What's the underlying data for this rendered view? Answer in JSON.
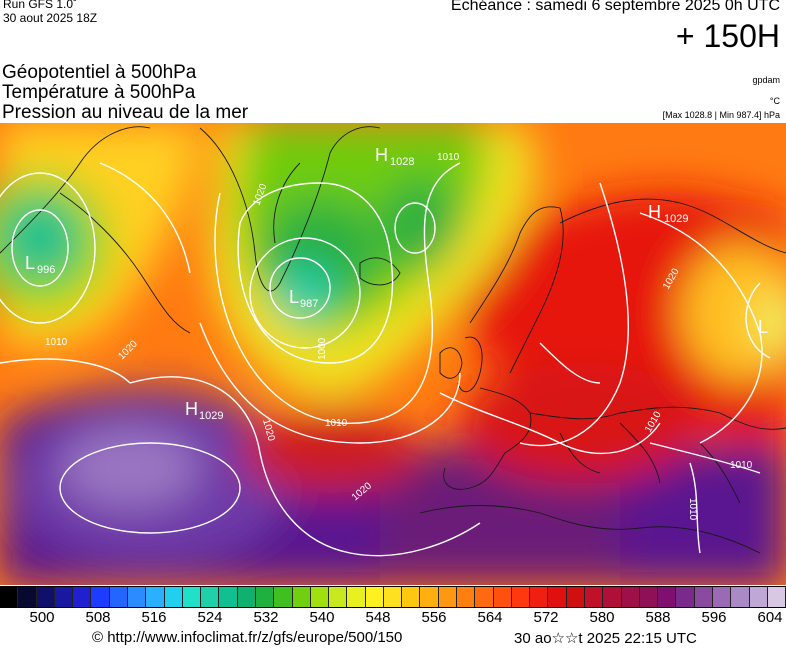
{
  "header": {
    "run_label": "Run GFS 1.0˚",
    "run_date": "30 aout 2025 18Z",
    "echeance": "Echéance : samedi 6 septembre 2025 0h UTC",
    "lead": "+ 150H"
  },
  "parameters": [
    "Géopotentiel à 500hPa",
    "Température à 500hPa",
    "Pression au niveau de la mer"
  ],
  "units": {
    "geopotential": "gpdam",
    "temperature": "°C",
    "pressure_range": "[Max 1028.8 | Min 987.4] hPa"
  },
  "pressure_centers": [
    {
      "type": "H",
      "value": "1028",
      "lon": -8,
      "lat": 72
    },
    {
      "type": "H",
      "value": "1029",
      "lon": 32,
      "lat": 66
    },
    {
      "type": "H",
      "value": "1029",
      "lon": -35,
      "lat": 45
    },
    {
      "type": "L",
      "value": "996",
      "lon": -62,
      "lat": 60
    },
    {
      "type": "L",
      "value": "987",
      "lon": -27,
      "lat": 61
    },
    {
      "type": "L",
      "value": "",
      "lon": 47,
      "lat": 62
    }
  ],
  "isobar_labels": [
    "1010",
    "1020",
    "1000",
    "1010",
    "1020",
    "1010",
    "1020",
    "1020",
    "1010",
    "1020",
    "1010",
    "1010"
  ],
  "colorbar": {
    "ticks": [
      "500",
      "508",
      "516",
      "524",
      "532",
      "540",
      "548",
      "556",
      "564",
      "572",
      "580",
      "588",
      "596",
      "604"
    ],
    "colors": [
      "#000000",
      "#080830",
      "#10106a",
      "#1818a0",
      "#2020d0",
      "#1e3cff",
      "#2266ff",
      "#2a8cff",
      "#2ab0ff",
      "#20d0ee",
      "#20e0c8",
      "#20d0a8",
      "#10c090",
      "#10b070",
      "#20b040",
      "#40c020",
      "#70d010",
      "#a0e010",
      "#c8e820",
      "#e8f020",
      "#fff020",
      "#ffe020",
      "#ffc810",
      "#ffb010",
      "#ff9810",
      "#ff8010",
      "#ff6a10",
      "#ff5010",
      "#ff3810",
      "#f02010",
      "#e01010",
      "#d01010",
      "#c0102a",
      "#b01038",
      "#a01048",
      "#901058",
      "#801070",
      "#7a2a8a",
      "#8a4aa0",
      "#9a6ab4",
      "#aa8ac6",
      "#c0a8d6",
      "#d8c8e4"
    ]
  },
  "footer": {
    "copyright": "© http://www.infoclimat.fr/z/gfs/europe/500/150",
    "generated": "30 ao☆☆t 2025 22:15 UTC"
  }
}
